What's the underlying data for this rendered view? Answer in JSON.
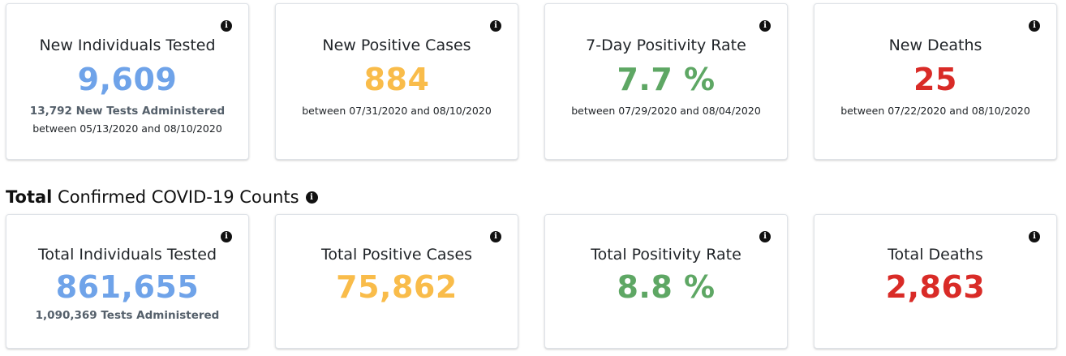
{
  "info_glyph": "i",
  "daily": {
    "tested": {
      "title": "New Individuals Tested",
      "value": "9,609",
      "subtext": "13,792 New Tests Administered",
      "period": "between 05/13/2020 and 08/10/2020"
    },
    "positive": {
      "title": "New Positive Cases",
      "value": "884",
      "period": "between 07/31/2020 and 08/10/2020"
    },
    "positivity": {
      "title": "7-Day Positivity Rate",
      "value": "7.7 %",
      "period": "between 07/29/2020 and 08/04/2020"
    },
    "deaths": {
      "title": "New Deaths",
      "value": "25",
      "period": "between 07/22/2020 and 08/10/2020"
    }
  },
  "section": {
    "bold": "Total",
    "rest": " Confirmed COVID-19 Counts"
  },
  "totals": {
    "tested": {
      "title": "Total Individuals Tested",
      "value": "861,655",
      "subtext": "1,090,369 Tests Administered"
    },
    "positive": {
      "title": "Total Positive Cases",
      "value": "75,862"
    },
    "positivity": {
      "title": "Total Positivity Rate",
      "value": "8.8 %"
    },
    "deaths": {
      "title": "Total Deaths",
      "value": "2,863"
    }
  },
  "colors": {
    "tested": "#6fa3e9",
    "positive": "#f9bc4a",
    "positivity": "#5ea764",
    "deaths": "#d92b27"
  },
  "icons": {
    "info": "info-circle-icon"
  }
}
